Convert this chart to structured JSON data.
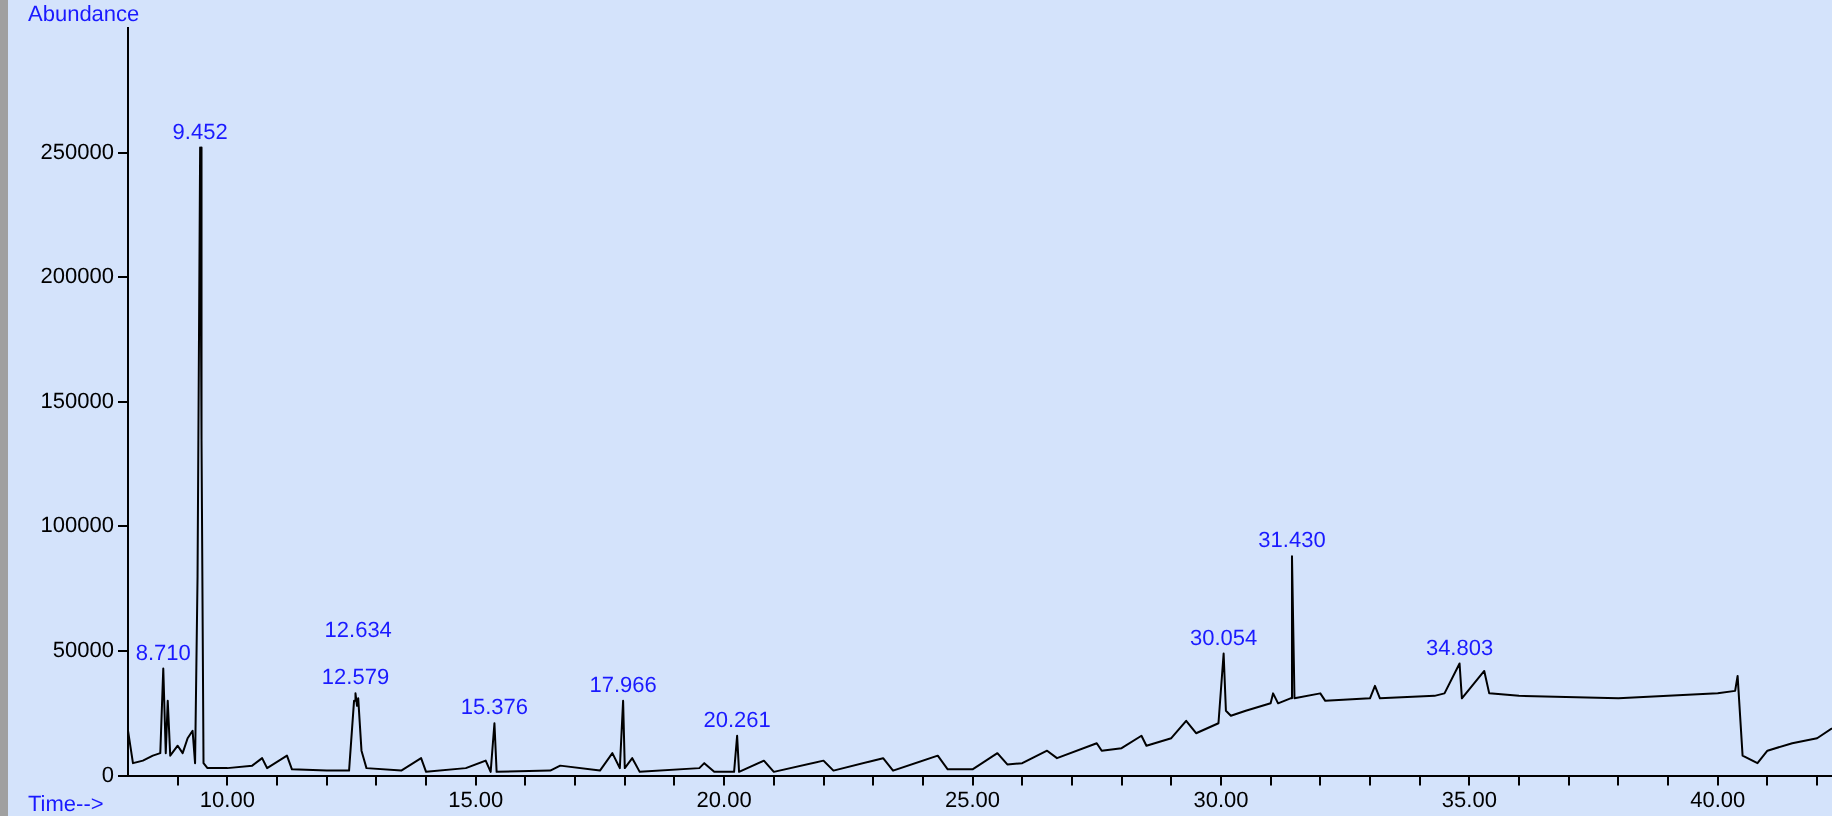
{
  "chart_data": {
    "type": "line",
    "xlabel": "Time-->",
    "ylabel": "Abundance",
    "color": "#000000",
    "grid": false,
    "legend": false,
    "marker": "none",
    "line_style": "solid",
    "x": [
      8.0,
      8.1,
      8.3,
      8.5,
      8.65,
      8.71,
      8.76,
      8.8,
      8.85,
      9.0,
      9.1,
      9.2,
      9.3,
      9.35,
      9.4,
      9.452,
      9.48,
      9.52,
      9.6,
      10.0,
      10.5,
      10.7,
      10.8,
      11.2,
      11.3,
      12.0,
      12.45,
      12.55,
      12.579,
      12.61,
      12.634,
      12.7,
      12.8,
      13.5,
      13.9,
      14.0,
      14.8,
      15.2,
      15.3,
      15.376,
      15.42,
      16.5,
      16.7,
      17.5,
      17.75,
      17.9,
      17.966,
      18.0,
      18.15,
      18.3,
      19.5,
      19.6,
      19.8,
      20.2,
      20.261,
      20.3,
      20.8,
      21.0,
      22.0,
      22.2,
      23.2,
      23.4,
      24.3,
      24.5,
      25.0,
      25.5,
      25.7,
      26.0,
      26.5,
      26.7,
      27.5,
      27.6,
      28.0,
      28.4,
      28.5,
      29.0,
      29.3,
      29.5,
      29.95,
      30.054,
      30.1,
      30.2,
      30.5,
      31.0,
      31.05,
      31.15,
      31.4,
      31.43,
      31.48,
      32.0,
      32.1,
      33.0,
      33.1,
      33.2,
      34.3,
      34.5,
      34.803,
      34.85,
      35.3,
      35.4,
      36.0,
      38.0,
      40.0,
      40.35,
      40.4,
      40.5,
      40.8,
      41.0,
      41.5,
      42.0,
      42.3
    ],
    "values": [
      18000,
      5000,
      6000,
      8000,
      9000,
      43000,
      9000,
      30000,
      8000,
      12000,
      9000,
      15000,
      18000,
      5000,
      80000,
      252000,
      135000,
      5000,
      3000,
      3000,
      4000,
      7000,
      3000,
      8000,
      2500,
      2000,
      2000,
      30000,
      33000,
      28000,
      31000,
      10000,
      3000,
      2000,
      7000,
      1500,
      3000,
      6000,
      1500,
      21000,
      1500,
      2000,
      4000,
      2000,
      9000,
      3000,
      30000,
      3000,
      7000,
      1500,
      3000,
      5000,
      1500,
      1500,
      16000,
      1500,
      6000,
      1500,
      6000,
      2000,
      7000,
      2000,
      8000,
      2500,
      2500,
      9000,
      4500,
      5000,
      10000,
      7000,
      13000,
      10000,
      11000,
      16000,
      12000,
      15000,
      22000,
      17000,
      21000,
      49000,
      26000,
      24000,
      26000,
      29000,
      33000,
      29000,
      31000,
      88000,
      31000,
      33000,
      30000,
      31000,
      36000,
      31000,
      32000,
      33000,
      45000,
      31000,
      42000,
      33000,
      32000,
      31000,
      33000,
      34000,
      40000,
      8000,
      5000,
      10000,
      13000,
      15000,
      19000
    ],
    "xlim": [
      8.0,
      42.3
    ],
    "ylim": [
      0,
      300000
    ],
    "xticks": [
      {
        "value": 9,
        "label": null
      },
      {
        "value": 10,
        "label": "10.00"
      },
      {
        "value": 11,
        "label": null
      },
      {
        "value": 12,
        "label": null
      },
      {
        "value": 13,
        "label": null
      },
      {
        "value": 14,
        "label": null
      },
      {
        "value": 15,
        "label": "15.00"
      },
      {
        "value": 16,
        "label": null
      },
      {
        "value": 17,
        "label": null
      },
      {
        "value": 18,
        "label": null
      },
      {
        "value": 19,
        "label": null
      },
      {
        "value": 20,
        "label": "20.00"
      },
      {
        "value": 21,
        "label": null
      },
      {
        "value": 22,
        "label": null
      },
      {
        "value": 23,
        "label": null
      },
      {
        "value": 24,
        "label": null
      },
      {
        "value": 25,
        "label": "25.00"
      },
      {
        "value": 26,
        "label": null
      },
      {
        "value": 27,
        "label": null
      },
      {
        "value": 28,
        "label": null
      },
      {
        "value": 29,
        "label": null
      },
      {
        "value": 30,
        "label": "30.00"
      },
      {
        "value": 31,
        "label": null
      },
      {
        "value": 32,
        "label": null
      },
      {
        "value": 33,
        "label": null
      },
      {
        "value": 34,
        "label": null
      },
      {
        "value": 35,
        "label": "35.00"
      },
      {
        "value": 36,
        "label": null
      },
      {
        "value": 37,
        "label": null
      },
      {
        "value": 38,
        "label": null
      },
      {
        "value": 39,
        "label": null
      },
      {
        "value": 40,
        "label": "40.00"
      },
      {
        "value": 41,
        "label": null
      },
      {
        "value": 42,
        "label": null
      }
    ],
    "yticks": [
      0,
      50000,
      100000,
      150000,
      200000,
      250000
    ],
    "annotations": [
      {
        "text": "8.710",
        "x": 8.71,
        "y": 43000
      },
      {
        "text": "9.452",
        "x": 9.452,
        "y": 252000
      },
      {
        "text": "12.579",
        "x": 12.579,
        "y": 33000
      },
      {
        "text": "12.634",
        "x": 12.634,
        "y": 31000
      },
      {
        "text": "15.376",
        "x": 15.376,
        "y": 21000
      },
      {
        "text": "17.966",
        "x": 17.966,
        "y": 30000
      },
      {
        "text": "20.261",
        "x": 20.261,
        "y": 16000
      },
      {
        "text": "30.054",
        "x": 30.054,
        "y": 49000
      },
      {
        "text": "31.430",
        "x": 31.43,
        "y": 88000
      },
      {
        "text": "34.803",
        "x": 34.803,
        "y": 45000
      }
    ]
  }
}
